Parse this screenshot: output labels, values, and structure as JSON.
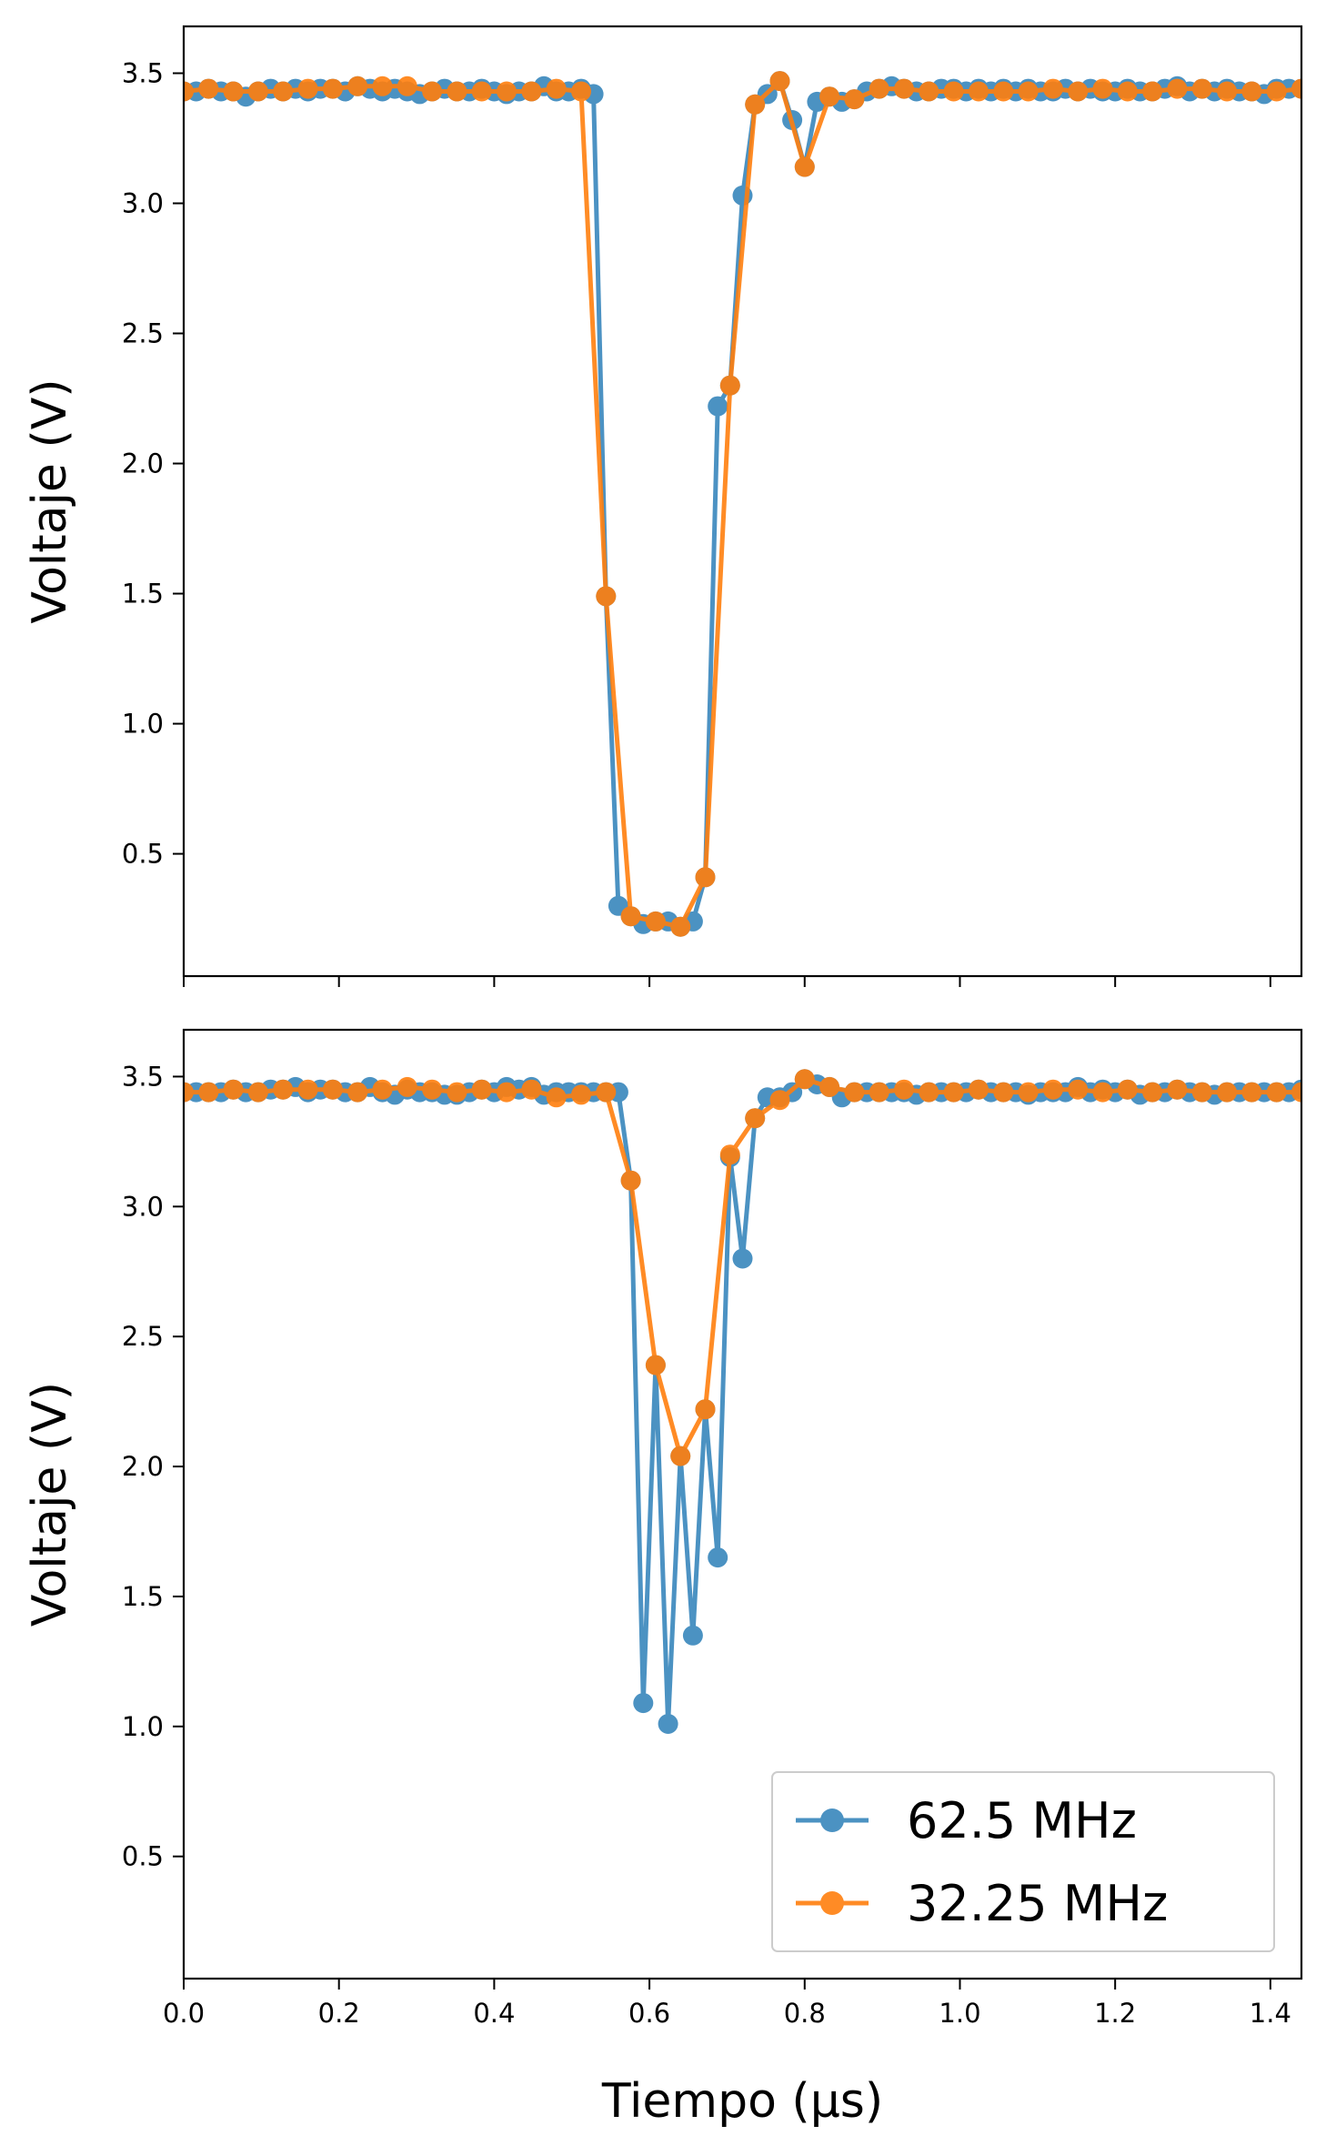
{
  "chart_data": [
    {
      "type": "line",
      "title": "",
      "xlabel": "",
      "ylabel": "Voltaje (V)",
      "xlim": [
        0.0,
        1.44
      ],
      "ylim": [
        0.03,
        3.68
      ],
      "xticks": [
        0.0,
        0.2,
        0.4,
        0.6,
        0.8,
        1.0,
        1.2,
        1.4
      ],
      "show_x_tick_labels": false,
      "yticks": [
        0.5,
        1.0,
        1.5,
        2.0,
        2.5,
        3.0,
        3.5
      ],
      "ytick_labels": [
        "0.5",
        "1.0",
        "1.5",
        "2.0",
        "2.5",
        "3.0",
        "3.5"
      ],
      "grid": false,
      "series": [
        {
          "name": "62.5 MHz",
          "color": "#1f77b4",
          "x": [
            0.0,
            0.016,
            0.032,
            0.048,
            0.064,
            0.08,
            0.096,
            0.112,
            0.128,
            0.144,
            0.16,
            0.176,
            0.192,
            0.208,
            0.224,
            0.24,
            0.256,
            0.272,
            0.288,
            0.304,
            0.32,
            0.336,
            0.352,
            0.368,
            0.384,
            0.4,
            0.416,
            0.432,
            0.448,
            0.464,
            0.48,
            0.496,
            0.512,
            0.528,
            0.544,
            0.56,
            0.576,
            0.592,
            0.608,
            0.624,
            0.64,
            0.656,
            0.672,
            0.688,
            0.704,
            0.72,
            0.736,
            0.752,
            0.768,
            0.784,
            0.8,
            0.816,
            0.832,
            0.848,
            0.864,
            0.88,
            0.896,
            0.912,
            0.928,
            0.944,
            0.96,
            0.976,
            0.992,
            1.008,
            1.024,
            1.04,
            1.056,
            1.072,
            1.088,
            1.104,
            1.12,
            1.136,
            1.152,
            1.168,
            1.184,
            1.2,
            1.216,
            1.232,
            1.248,
            1.264,
            1.28,
            1.296,
            1.312,
            1.328,
            1.344,
            1.36,
            1.376,
            1.392,
            1.408,
            1.424,
            1.44
          ],
          "y": [
            3.43,
            3.43,
            3.44,
            3.43,
            3.43,
            3.41,
            3.43,
            3.44,
            3.43,
            3.44,
            3.43,
            3.44,
            3.44,
            3.43,
            3.45,
            3.44,
            3.43,
            3.44,
            3.43,
            3.42,
            3.43,
            3.44,
            3.43,
            3.43,
            3.44,
            3.43,
            3.42,
            3.43,
            3.43,
            3.45,
            3.43,
            3.43,
            3.44,
            3.42,
            1.49,
            0.3,
            0.26,
            0.23,
            0.24,
            0.24,
            0.22,
            0.24,
            0.41,
            2.22,
            2.3,
            3.03,
            3.38,
            3.42,
            3.47,
            3.32,
            3.14,
            3.39,
            3.41,
            3.39,
            3.4,
            3.43,
            3.44,
            3.45,
            3.44,
            3.43,
            3.43,
            3.44,
            3.44,
            3.43,
            3.44,
            3.43,
            3.44,
            3.43,
            3.44,
            3.43,
            3.43,
            3.44,
            3.43,
            3.44,
            3.43,
            3.43,
            3.44,
            3.43,
            3.43,
            3.44,
            3.45,
            3.43,
            3.44,
            3.43,
            3.44,
            3.43,
            3.43,
            3.42,
            3.44,
            3.44,
            3.44
          ]
        },
        {
          "name": "32.25 MHz",
          "color": "#ff7f0e",
          "x": [
            0.0,
            0.032,
            0.064,
            0.096,
            0.128,
            0.16,
            0.192,
            0.224,
            0.256,
            0.288,
            0.32,
            0.352,
            0.384,
            0.416,
            0.448,
            0.48,
            0.512,
            0.544,
            0.576,
            0.608,
            0.64,
            0.672,
            0.704,
            0.736,
            0.768,
            0.8,
            0.832,
            0.864,
            0.896,
            0.928,
            0.96,
            0.992,
            1.024,
            1.056,
            1.088,
            1.12,
            1.152,
            1.184,
            1.216,
            1.248,
            1.28,
            1.312,
            1.344,
            1.376,
            1.408,
            1.44
          ],
          "y": [
            3.43,
            3.44,
            3.43,
            3.43,
            3.43,
            3.44,
            3.44,
            3.45,
            3.45,
            3.45,
            3.43,
            3.43,
            3.43,
            3.43,
            3.43,
            3.44,
            3.43,
            1.49,
            0.26,
            0.24,
            0.22,
            0.41,
            2.3,
            3.38,
            3.47,
            3.14,
            3.41,
            3.4,
            3.44,
            3.44,
            3.43,
            3.43,
            3.43,
            3.43,
            3.43,
            3.44,
            3.43,
            3.44,
            3.43,
            3.43,
            3.44,
            3.44,
            3.43,
            3.43,
            3.43,
            3.44
          ]
        }
      ]
    },
    {
      "type": "line",
      "title": "",
      "xlabel": "Tiempo (μs)",
      "ylabel": "Voltaje (V)",
      "xlim": [
        0.0,
        1.44
      ],
      "ylim": [
        0.03,
        3.68
      ],
      "xticks": [
        0.0,
        0.2,
        0.4,
        0.6,
        0.8,
        1.0,
        1.2,
        1.4
      ],
      "xtick_labels": [
        "0.0",
        "0.2",
        "0.4",
        "0.6",
        "0.8",
        "1.0",
        "1.2",
        "1.4"
      ],
      "show_x_tick_labels": true,
      "yticks": [
        0.5,
        1.0,
        1.5,
        2.0,
        2.5,
        3.0,
        3.5
      ],
      "ytick_labels": [
        "0.5",
        "1.0",
        "1.5",
        "2.0",
        "2.5",
        "3.0",
        "3.5"
      ],
      "grid": false,
      "legend": {
        "location": "lower right"
      },
      "series": [
        {
          "name": "62.5 MHz",
          "color": "#1f77b4",
          "x": [
            0.0,
            0.016,
            0.032,
            0.048,
            0.064,
            0.08,
            0.096,
            0.112,
            0.128,
            0.144,
            0.16,
            0.176,
            0.192,
            0.208,
            0.224,
            0.24,
            0.256,
            0.272,
            0.288,
            0.304,
            0.32,
            0.336,
            0.352,
            0.368,
            0.384,
            0.4,
            0.416,
            0.432,
            0.448,
            0.464,
            0.48,
            0.496,
            0.512,
            0.528,
            0.544,
            0.56,
            0.576,
            0.592,
            0.608,
            0.624,
            0.64,
            0.656,
            0.672,
            0.688,
            0.704,
            0.72,
            0.736,
            0.752,
            0.768,
            0.784,
            0.8,
            0.816,
            0.832,
            0.848,
            0.864,
            0.88,
            0.896,
            0.912,
            0.928,
            0.944,
            0.96,
            0.976,
            0.992,
            1.008,
            1.024,
            1.04,
            1.056,
            1.072,
            1.088,
            1.104,
            1.12,
            1.136,
            1.152,
            1.168,
            1.184,
            1.2,
            1.216,
            1.232,
            1.248,
            1.264,
            1.28,
            1.296,
            1.312,
            1.328,
            1.344,
            1.36,
            1.376,
            1.392,
            1.408,
            1.424,
            1.44
          ],
          "y": [
            3.44,
            3.44,
            3.44,
            3.44,
            3.45,
            3.44,
            3.44,
            3.45,
            3.45,
            3.46,
            3.44,
            3.45,
            3.45,
            3.44,
            3.44,
            3.46,
            3.44,
            3.43,
            3.45,
            3.44,
            3.44,
            3.43,
            3.43,
            3.44,
            3.45,
            3.44,
            3.46,
            3.45,
            3.46,
            3.43,
            3.44,
            3.44,
            3.44,
            3.44,
            3.44,
            3.44,
            3.1,
            1.09,
            2.39,
            1.01,
            2.04,
            1.35,
            2.22,
            1.65,
            3.19,
            2.8,
            3.34,
            3.42,
            3.42,
            3.44,
            3.49,
            3.47,
            3.46,
            3.42,
            3.44,
            3.44,
            3.44,
            3.44,
            3.44,
            3.43,
            3.44,
            3.44,
            3.44,
            3.44,
            3.45,
            3.44,
            3.44,
            3.44,
            3.43,
            3.44,
            3.44,
            3.44,
            3.46,
            3.44,
            3.45,
            3.44,
            3.45,
            3.43,
            3.44,
            3.44,
            3.45,
            3.44,
            3.44,
            3.43,
            3.44,
            3.44,
            3.44,
            3.44,
            3.44,
            3.44,
            3.45
          ]
        },
        {
          "name": "32.25 MHz",
          "color": "#ff7f0e",
          "x": [
            0.0,
            0.032,
            0.064,
            0.096,
            0.128,
            0.16,
            0.192,
            0.224,
            0.256,
            0.288,
            0.32,
            0.352,
            0.384,
            0.416,
            0.448,
            0.48,
            0.512,
            0.544,
            0.576,
            0.608,
            0.64,
            0.672,
            0.704,
            0.736,
            0.768,
            0.8,
            0.832,
            0.864,
            0.896,
            0.928,
            0.96,
            0.992,
            1.024,
            1.056,
            1.088,
            1.12,
            1.152,
            1.184,
            1.216,
            1.248,
            1.28,
            1.312,
            1.344,
            1.376,
            1.408,
            1.44
          ],
          "y": [
            3.44,
            3.44,
            3.45,
            3.44,
            3.45,
            3.45,
            3.45,
            3.44,
            3.45,
            3.46,
            3.45,
            3.44,
            3.45,
            3.44,
            3.45,
            3.42,
            3.43,
            3.44,
            3.1,
            2.39,
            2.04,
            2.22,
            3.2,
            3.34,
            3.41,
            3.49,
            3.46,
            3.44,
            3.44,
            3.45,
            3.44,
            3.44,
            3.45,
            3.44,
            3.44,
            3.45,
            3.45,
            3.44,
            3.45,
            3.44,
            3.45,
            3.44,
            3.44,
            3.44,
            3.44,
            3.44
          ]
        }
      ]
    }
  ]
}
